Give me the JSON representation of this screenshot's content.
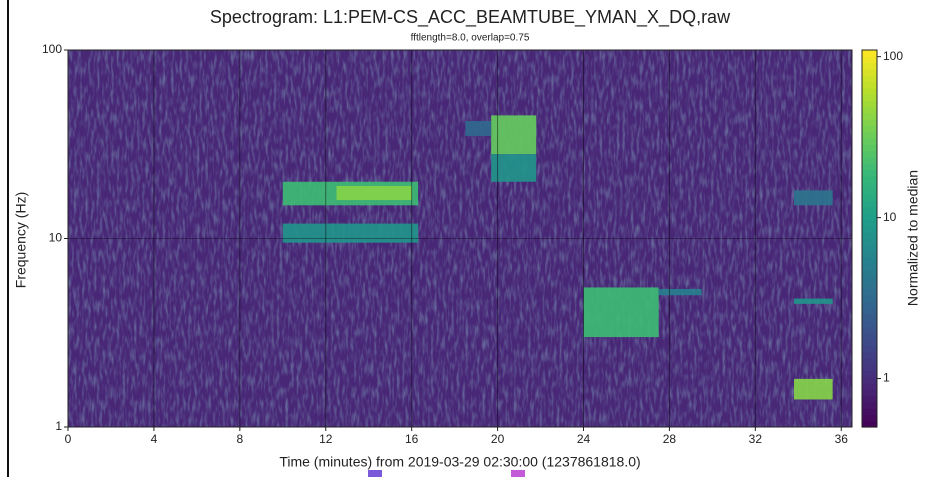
{
  "chart_data": {
    "type": "spectrogram",
    "title": "Spectrogram: L1:PEM-CS_ACC_BEAMTUBE_YMAN_X_DQ,raw",
    "subtitle": "fftlength=8.0, overlap=0.75",
    "x_label": "Time (minutes) from 2019-03-29 02:30:00 (1237861818.0)",
    "y_label": "Frequency (Hz)",
    "colorbar_label": "Normalized to median",
    "xlim": [
      0,
      36.5
    ],
    "xticks": [
      0,
      4,
      8,
      12,
      16,
      20,
      24,
      28,
      32,
      36
    ],
    "ylim": [
      1,
      100
    ],
    "yticks": [
      1,
      10,
      100
    ],
    "ylog": true,
    "clim": [
      0.5,
      110
    ],
    "cticks": [
      1,
      10,
      100
    ],
    "clog": true,
    "colormap": "viridis",
    "grid": true,
    "background": 0.9,
    "blocks": [
      {
        "t": [
          10,
          16.3
        ],
        "f": [
          15,
          20
        ],
        "value": 20
      },
      {
        "t": [
          12.5,
          16
        ],
        "f": [
          16,
          19
        ],
        "value": 40
      },
      {
        "t": [
          10,
          16.3
        ],
        "f": [
          9.5,
          12
        ],
        "value": 8
      },
      {
        "t": [
          19.7,
          21.8
        ],
        "f": [
          28,
          45
        ],
        "value": 30
      },
      {
        "t": [
          19.7,
          21.8
        ],
        "f": [
          20,
          28
        ],
        "value": 8
      },
      {
        "t": [
          18.5,
          19.7
        ],
        "f": [
          35,
          42
        ],
        "value": 3
      },
      {
        "t": [
          24,
          27.5
        ],
        "f": [
          3,
          5.5
        ],
        "value": 20
      },
      {
        "t": [
          27.5,
          29.5
        ],
        "f": [
          5,
          5.4
        ],
        "value": 5
      },
      {
        "t": [
          33.8,
          35.6
        ],
        "f": [
          1.4,
          1.8
        ],
        "value": 40
      },
      {
        "t": [
          33.8,
          35.6
        ],
        "f": [
          4.5,
          4.8
        ],
        "value": 8
      },
      {
        "t": [
          33.8,
          35.6
        ],
        "f": [
          15,
          18
        ],
        "value": 4
      }
    ]
  }
}
